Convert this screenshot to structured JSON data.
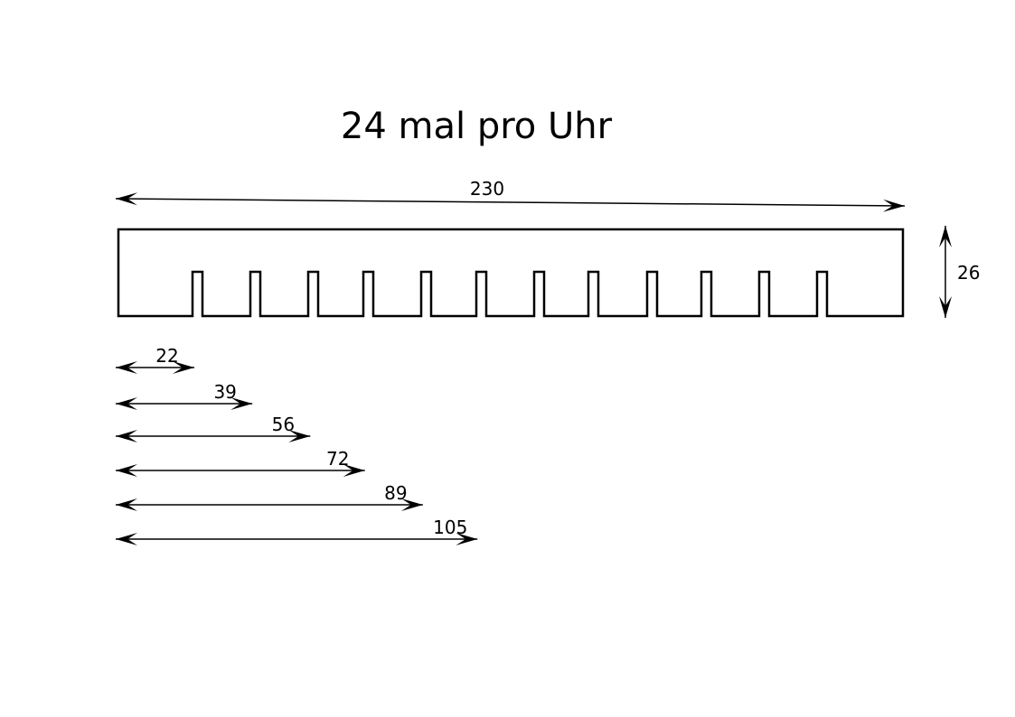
{
  "title": "24 mal pro Uhr",
  "overall_width": {
    "value": 230,
    "label": "230"
  },
  "overall_height": {
    "value": 26,
    "label": "26"
  },
  "notch_count": 12,
  "offsets": [
    {
      "value": 22,
      "label": "22"
    },
    {
      "value": 39,
      "label": "39"
    },
    {
      "value": 56,
      "label": "56"
    },
    {
      "value": 72,
      "label": "72"
    },
    {
      "value": 89,
      "label": "89"
    },
    {
      "value": 105,
      "label": "105"
    }
  ],
  "colors": {
    "stroke": "#000000",
    "background": "#ffffff"
  }
}
